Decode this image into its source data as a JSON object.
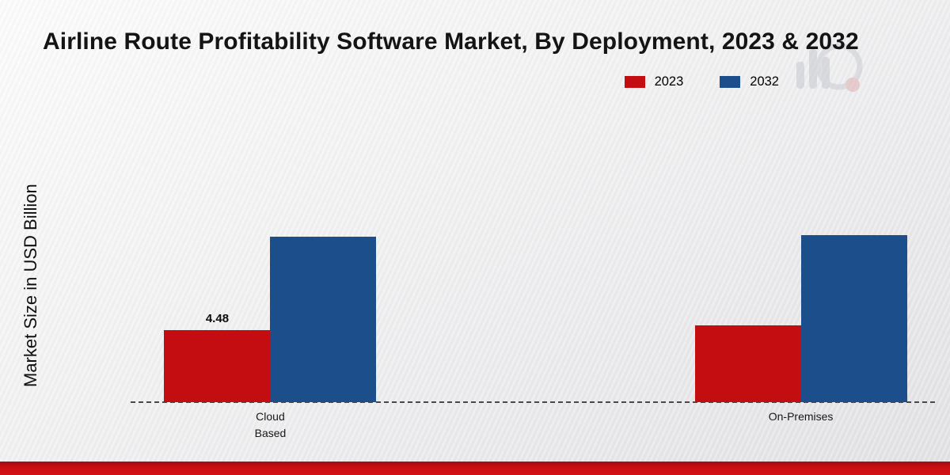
{
  "chart_data": {
    "type": "bar",
    "title": "Airline Route Profitability Software Market, By Deployment, 2023 & 2032",
    "ylabel": "Market Size in USD Billion",
    "xlabel": "",
    "categories": [
      "Cloud Based",
      "On-Premises"
    ],
    "category_lines": [
      [
        "Cloud",
        "Based"
      ],
      [
        "On-Premises"
      ]
    ],
    "series": [
      {
        "name": "2023",
        "color": "#c30d10",
        "values": [
          4.48,
          4.8
        ],
        "labels": [
          "4.48",
          ""
        ]
      },
      {
        "name": "2032",
        "color": "#1b4e8a",
        "values": [
          10.3,
          10.4
        ],
        "labels": [
          "",
          ""
        ]
      }
    ],
    "ylim": [
      0,
      18
    ],
    "grid": false,
    "legend_position": "top-right",
    "baseline_style": "dashed",
    "group_centers_pct": [
      17.3,
      83
    ],
    "accent_bar_color": "#c90f14"
  }
}
